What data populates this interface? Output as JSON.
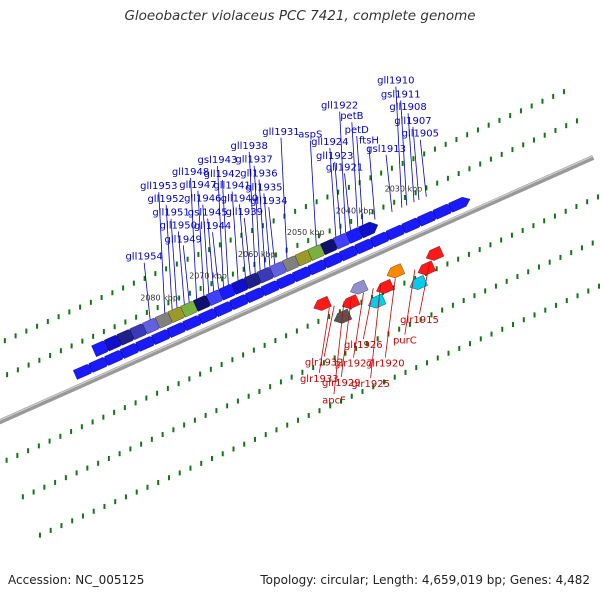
{
  "title": "Gloeobacter violaceus PCC 7421, complete genome",
  "footer": {
    "accession": "Accession: NC_005125",
    "summary": "Topology: circular; Length: 4,659,019 bp; Genes: 4,482"
  },
  "colors": {
    "forward_label": "#0000cc",
    "reverse_label": "#cc0000",
    "forward_gene": "#1a1aff",
    "reverse_gene": "#ff1a1a",
    "tick": "#117711",
    "backbone": "#888888"
  },
  "scale": {
    "ticks": [
      {
        "kbp": 2030,
        "label": "2030 kbp"
      },
      {
        "kbp": 2040,
        "label": "2040 kbp"
      },
      {
        "kbp": 2050,
        "label": "2050 kbp"
      },
      {
        "kbp": 2060,
        "label": "2060 kbp"
      },
      {
        "kbp": 2070,
        "label": "2070 kbp"
      },
      {
        "kbp": 2080,
        "label": "2080 kbp"
      }
    ]
  },
  "forward_genes": [
    {
      "name": "gll1905",
      "kbp": 2026.5
    },
    {
      "name": "gll1907",
      "kbp": 2028.0
    },
    {
      "name": "gll1908",
      "kbp": 2029.0
    },
    {
      "name": "gsl1911",
      "kbp": 2030.5
    },
    {
      "name": "gll1910",
      "kbp": 2031.5
    },
    {
      "name": "gsl1913",
      "kbp": 2033.5
    },
    {
      "name": "ftsH",
      "kbp": 2037.0
    },
    {
      "name": "petD",
      "kbp": 2039.5
    },
    {
      "name": "petB",
      "kbp": 2040.5
    },
    {
      "name": "gll1922",
      "kbp": 2043.0
    },
    {
      "name": "gll1921",
      "kbp": 2042.0
    },
    {
      "name": "gll1923",
      "kbp": 2044.0
    },
    {
      "name": "gll1924",
      "kbp": 2045.0
    },
    {
      "name": "aspS",
      "kbp": 2049.0
    },
    {
      "name": "gll1931",
      "kbp": 2055.0
    },
    {
      "name": "gll1934",
      "kbp": 2057.5
    },
    {
      "name": "gll1935",
      "kbp": 2058.5
    },
    {
      "name": "gll1936",
      "kbp": 2059.5
    },
    {
      "name": "gll1937",
      "kbp": 2060.5
    },
    {
      "name": "gll1938",
      "kbp": 2061.5
    },
    {
      "name": "gll1939",
      "kbp": 2062.5
    },
    {
      "name": "gll1940",
      "kbp": 2063.5
    },
    {
      "name": "gll1941",
      "kbp": 2065.0
    },
    {
      "name": "gll1942",
      "kbp": 2067.0
    },
    {
      "name": "gsl1943",
      "kbp": 2068.0
    },
    {
      "name": "gll1944",
      "kbp": 2069.0
    },
    {
      "name": "gsl1945",
      "kbp": 2070.0
    },
    {
      "name": "gll1946",
      "kbp": 2071.0
    },
    {
      "name": "gll1947",
      "kbp": 2072.0
    },
    {
      "name": "gll1948",
      "kbp": 2073.5
    },
    {
      "name": "gll1949",
      "kbp": 2075.0
    },
    {
      "name": "gll1950",
      "kbp": 2076.0
    },
    {
      "name": "gll1951",
      "kbp": 2077.5
    },
    {
      "name": "gll1952",
      "kbp": 2078.5
    },
    {
      "name": "gll1953",
      "kbp": 2080.0
    },
    {
      "name": "gll1954",
      "kbp": 2083.0
    }
  ],
  "reverse_genes": [
    {
      "name": "glr1915",
      "kbp": 2031.0
    },
    {
      "name": "purC",
      "kbp": 2034.0
    },
    {
      "name": "glr1920",
      "kbp": 2038.0
    },
    {
      "name": "glr1925",
      "kbp": 2041.0
    },
    {
      "name": "glr1926",
      "kbp": 2042.5
    },
    {
      "name": "glr1927",
      "kbp": 2044.5
    },
    {
      "name": "glr1929",
      "kbp": 2047.0
    },
    {
      "name": "apcF",
      "kbp": 2048.5
    },
    {
      "name": "glr1932",
      "kbp": 2050.5
    },
    {
      "name": "glr1933",
      "kbp": 2051.5
    }
  ]
}
